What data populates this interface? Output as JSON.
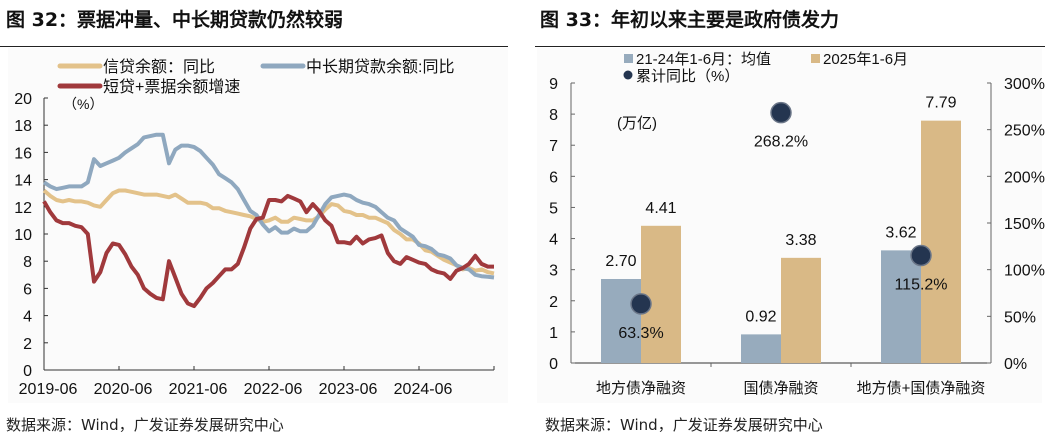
{
  "left": {
    "title": "图 32：票据冲量、中长期贷款仍然较弱",
    "source": "数据来源：Wind，广发证券发展研究中心"
  },
  "right": {
    "title": "图 33：年初以来主要是政府债发力",
    "source": "数据来源：Wind，广发证券发展研究中心"
  },
  "chart_data": [
    {
      "type": "line",
      "unit_label": "（%）",
      "ylim": [
        0,
        20
      ],
      "yticks": [
        "0",
        "2",
        "4",
        "6",
        "8",
        "10",
        "12",
        "14",
        "16",
        "18",
        "20"
      ],
      "xticks": [
        "2019-06",
        "2020-06",
        "2021-06",
        "2022-06",
        "2023-06",
        "2024-06"
      ],
      "x_start": "2019-06",
      "x_end": "2025-06",
      "frequency": "monthly",
      "legend": "top",
      "series": [
        {
          "name": "信贷余额：同比",
          "color": "#e3c28a",
          "values": [
            13.2,
            12.8,
            12.5,
            12.4,
            12.5,
            12.4,
            12.4,
            12.3,
            12.1,
            12.0,
            12.5,
            13.0,
            13.2,
            13.2,
            13.1,
            13.0,
            12.9,
            12.9,
            12.9,
            12.8,
            12.7,
            12.9,
            12.6,
            12.3,
            12.3,
            12.3,
            12.2,
            11.9,
            11.9,
            11.7,
            11.6,
            11.5,
            11.4,
            11.3,
            11.1,
            10.9,
            11.0,
            11.2,
            10.9,
            10.9,
            11.2,
            11.1,
            11.0,
            11.0,
            11.3,
            11.8,
            12.2,
            12.1,
            11.7,
            11.6,
            11.4,
            11.4,
            11.2,
            11.2,
            11.0,
            10.8,
            10.3,
            10.0,
            9.6,
            9.6,
            9.3,
            8.8,
            8.7,
            8.4,
            8.1,
            7.9,
            7.7,
            7.4,
            7.5,
            7.3,
            7.4,
            7.2,
            7.1
          ]
        },
        {
          "name": "中长期贷款余额:同比",
          "color": "#8fa8bf",
          "values": [
            13.8,
            13.5,
            13.3,
            13.4,
            13.5,
            13.5,
            13.5,
            13.8,
            15.5,
            15.0,
            15.2,
            15.4,
            15.6,
            16.0,
            16.3,
            16.6,
            17.1,
            17.2,
            17.3,
            17.3,
            15.2,
            16.2,
            16.5,
            16.5,
            16.4,
            16.1,
            15.6,
            15.1,
            14.4,
            14.1,
            13.8,
            13.3,
            12.5,
            11.7,
            11.4,
            10.7,
            10.2,
            10.5,
            10.1,
            10.1,
            10.4,
            10.2,
            10.2,
            10.6,
            11.4,
            12.2,
            12.7,
            12.8,
            12.9,
            12.8,
            12.5,
            12.3,
            12.2,
            12.0,
            11.6,
            11.2,
            11.0,
            10.4,
            10.1,
            9.8,
            9.2,
            9.1,
            8.9,
            8.5,
            8.4,
            8.2,
            7.7,
            7.5,
            7.4,
            7.0,
            6.9,
            6.85,
            6.8
          ]
        },
        {
          "name": "短贷+票据余额增速",
          "color": "#a0393c",
          "values": [
            12.4,
            11.6,
            11.0,
            10.8,
            10.8,
            10.6,
            10.5,
            10.0,
            6.5,
            7.2,
            8.6,
            9.3,
            9.2,
            8.5,
            7.6,
            7.0,
            6.0,
            5.6,
            5.3,
            5.2,
            8.0,
            6.8,
            5.6,
            4.9,
            4.7,
            5.3,
            6.0,
            6.4,
            6.9,
            7.4,
            7.4,
            7.8,
            9.0,
            10.4,
            11.1,
            11.2,
            12.5,
            12.5,
            12.4,
            12.8,
            12.6,
            12.4,
            11.6,
            12.2,
            11.7,
            11.0,
            10.6,
            9.4,
            9.4,
            9.3,
            9.8,
            9.3,
            9.6,
            9.7,
            9.9,
            8.6,
            8.0,
            7.8,
            8.3,
            8.1,
            7.9,
            7.8,
            7.4,
            7.2,
            7.1,
            6.7,
            7.3,
            7.5,
            7.8,
            8.4,
            7.8,
            7.6,
            7.6
          ]
        }
      ]
    },
    {
      "type": "bar",
      "unit_label": "(万亿)",
      "ylim": [
        0,
        9
      ],
      "yticks": [
        "0",
        "1",
        "2",
        "3",
        "4",
        "5",
        "6",
        "7",
        "8",
        "9"
      ],
      "y2lim": [
        0,
        300
      ],
      "y2ticks": [
        "0%",
        "50%",
        "100%",
        "150%",
        "200%",
        "250%",
        "300%"
      ],
      "legend": "top-left",
      "categories": [
        "地方债净融资",
        "国债净融资",
        "地方债+国债净融资"
      ],
      "series": [
        {
          "name": "21-24年1-6月：均值",
          "color": "#97abbd",
          "values": [
            2.7,
            0.92,
            3.62
          ],
          "labels": [
            "2.70",
            "0.92",
            "3.62"
          ]
        },
        {
          "name": "2025年1-6月",
          "color": "#d9b986",
          "values": [
            4.41,
            3.38,
            7.79
          ],
          "labels": [
            "4.41",
            "3.38",
            "7.79"
          ]
        },
        {
          "name": "累计同比（%）",
          "color": "#243550",
          "axis": "right",
          "values": [
            63.3,
            268.2,
            115.2
          ],
          "labels": [
            "63.3%",
            "268.2%",
            "115.2%"
          ]
        }
      ]
    }
  ]
}
